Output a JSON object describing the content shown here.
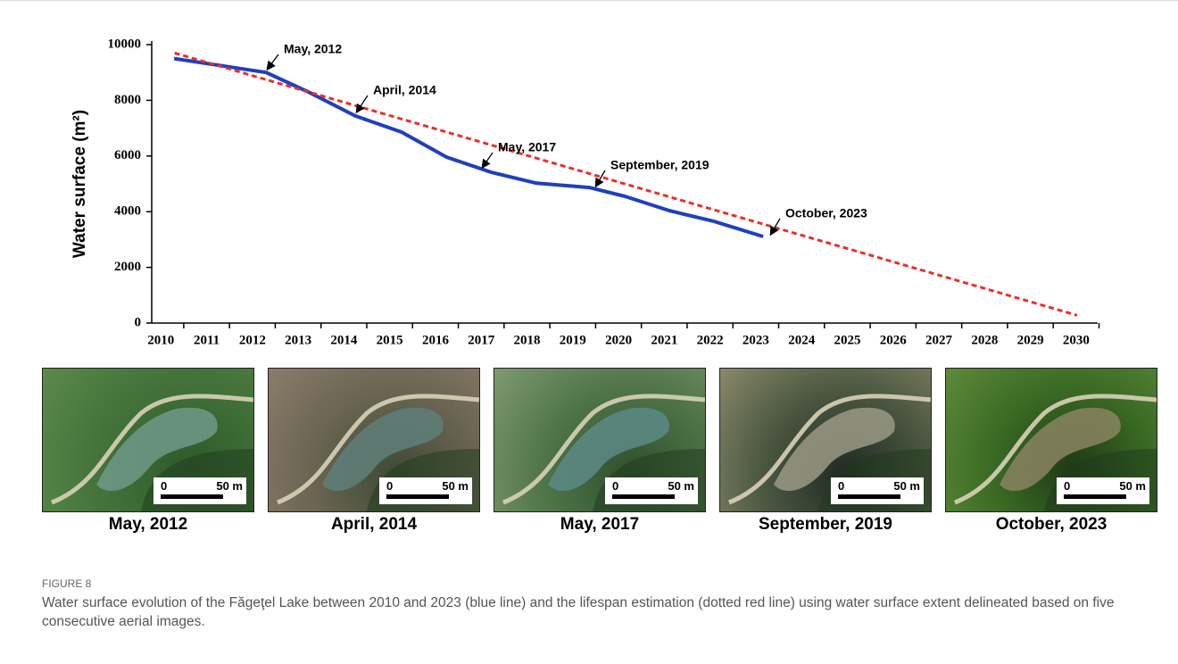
{
  "chart_data": {
    "type": "line",
    "ylabel": "Water surface (m²)",
    "xlim": [
      2009.8,
      2030.47
    ],
    "ylim": [
      0,
      10000
    ],
    "xticks": [
      2010,
      2011,
      2012,
      2013,
      2014,
      2015,
      2016,
      2017,
      2018,
      2019,
      2020,
      2021,
      2022,
      2023,
      2024,
      2025,
      2026,
      2027,
      2028,
      2029,
      2030
    ],
    "yticks": [
      0,
      2000,
      4000,
      6000,
      8000,
      10000
    ],
    "series": [
      {
        "color": "#1f3fbf",
        "style": "solid",
        "x": [
          2010.29,
          2012.3,
          2013.22,
          2014.25,
          2015.26,
          2016.24,
          2017.21,
          2018.19,
          2019.36,
          2020.14,
          2021.11,
          2022.09,
          2023.16
        ],
        "values": [
          9500,
          9000,
          8300,
          7440,
          6860,
          5960,
          5420,
          5030,
          4870,
          4550,
          4040,
          3650,
          3110
        ]
      },
      {
        "color": "#e8302c",
        "style": "dashed",
        "x": [
          2010.3,
          2030.02
        ],
        "values": [
          9700,
          280
        ]
      }
    ],
    "annotations": [
      "May, 2012",
      "April, 2014",
      "May, 2017",
      "September, 2019",
      "October, 2023"
    ]
  },
  "panels": [
    {
      "label": "May, 2012",
      "scale_start": "0",
      "scale_end": "50 m"
    },
    {
      "label": "April, 2014",
      "scale_start": "0",
      "scale_end": "50 m"
    },
    {
      "label": "May, 2017",
      "scale_start": "0",
      "scale_end": "50 m"
    },
    {
      "label": "September, 2019",
      "scale_start": "0",
      "scale_end": "50 m"
    },
    {
      "label": "October, 2023",
      "scale_start": "0",
      "scale_end": "50 m"
    }
  ],
  "caption": {
    "label": "FIGURE 8",
    "text": "Water surface evolution of the Făgeţel Lake between 2010 and 2023 (blue line) and the lifespan estimation (dotted red line) using water surface extent delineated based on five consecutive aerial images."
  }
}
